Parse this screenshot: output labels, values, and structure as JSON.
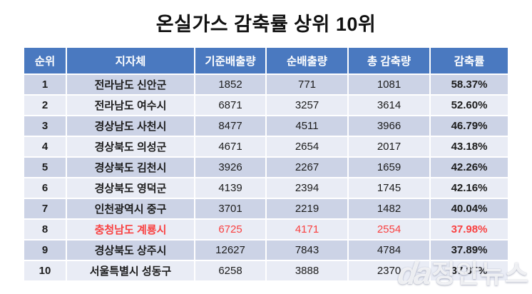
{
  "page_title": "온실가스 감축률 상위 10위",
  "chart_data": {
    "type": "table",
    "title": "온실가스 감축률 상위 10위",
    "columns": [
      "순위",
      "지자체",
      "기준배출량",
      "순배출량",
      "총 감축량",
      "감축률"
    ],
    "rows": [
      [
        "1",
        "전라남도 신안군",
        "1852",
        "771",
        "1081",
        "58.37%"
      ],
      [
        "2",
        "전라남도 여수시",
        "6871",
        "3257",
        "3614",
        "52.60%"
      ],
      [
        "3",
        "경상남도 사천시",
        "8477",
        "4511",
        "3966",
        "46.79%"
      ],
      [
        "4",
        "경상북도 의성군",
        "4671",
        "2654",
        "2017",
        "43.18%"
      ],
      [
        "5",
        "경상북도 김천시",
        "3926",
        "2267",
        "1659",
        "42.26%"
      ],
      [
        "6",
        "경상북도 영덕군",
        "4139",
        "2394",
        "1745",
        "42.16%"
      ],
      [
        "7",
        "인천광역시 중구",
        "3701",
        "2219",
        "1482",
        "40.04%"
      ],
      [
        "8",
        "충청남도 계룡시",
        "6725",
        "4171",
        "2554",
        "37.98%"
      ],
      [
        "9",
        "경상북도 상주시",
        "12627",
        "7843",
        "4784",
        "37.89%"
      ],
      [
        "10",
        "서울특별시 성동구",
        "6258",
        "3888",
        "2370",
        "37.87%"
      ]
    ],
    "highlighted_row_rank": "8",
    "legend_position": "none",
    "grid": "banded-rows"
  },
  "colors": {
    "header_bg": "#4a79c0",
    "row_odd_bg": "#ccd3e6",
    "row_even_bg": "#e9ecf5",
    "highlight_text": "#f94040",
    "title_text": "#111111"
  },
  "watermark": {
    "logo": "da",
    "text": "정안뉴스"
  }
}
